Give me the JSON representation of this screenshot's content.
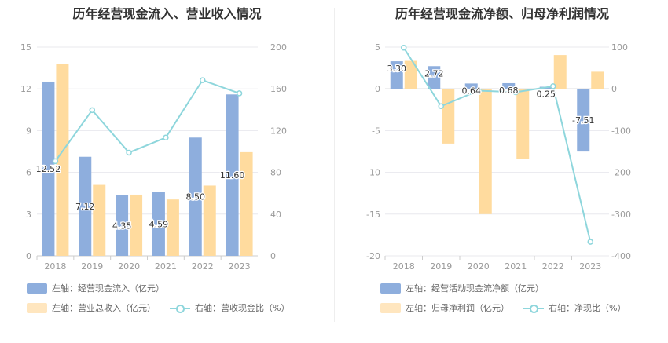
{
  "colors": {
    "bar_primary": "#8eaedd",
    "bar_secondary": "#ffdb9e",
    "line": "#8ed6dc",
    "axis_text": "#999999",
    "grid": "#e8e8ee"
  },
  "chart_data": [
    {
      "type": "bar",
      "title": "历年经营现金流入、营业收入情况",
      "categories": [
        "2018",
        "2019",
        "2020",
        "2021",
        "2022",
        "2023"
      ],
      "left_axis": {
        "ylim": [
          0,
          15
        ],
        "ticks": [
          "0",
          "3",
          "6",
          "9",
          "12",
          "15"
        ]
      },
      "right_axis": {
        "ylim": [
          0,
          200
        ],
        "ticks": [
          "0",
          "40",
          "80",
          "120",
          "160",
          "200"
        ]
      },
      "series": [
        {
          "name": "左轴：经营现金流入（亿元）",
          "type": "bar",
          "axis": "left",
          "values": [
            12.52,
            7.12,
            4.35,
            4.59,
            8.5,
            11.6
          ],
          "labels": [
            "12.52",
            "7.12",
            "4.35",
            "4.59",
            "8.50",
            "11.60"
          ]
        },
        {
          "name": "左轴：营业总收入（亿元）",
          "type": "bar",
          "axis": "left",
          "values": [
            13.8,
            5.1,
            4.4,
            4.05,
            5.05,
            7.45
          ]
        },
        {
          "name": "右轴：营收现金比（%）",
          "type": "line",
          "axis": "right",
          "values": [
            90.7,
            139.6,
            98.9,
            113.3,
            168.3,
            155.7
          ]
        }
      ]
    },
    {
      "type": "bar",
      "title": "历年经营现金流净额、归母净利润情况",
      "categories": [
        "2018",
        "2019",
        "2020",
        "2021",
        "2022",
        "2023"
      ],
      "left_axis": {
        "ylim": [
          -20,
          5
        ],
        "ticks": [
          "-20",
          "-15",
          "-10",
          "-5",
          "0",
          "5"
        ]
      },
      "right_axis": {
        "ylim": [
          -400,
          100
        ],
        "ticks": [
          "-400",
          "-300",
          "-200",
          "-100",
          "0",
          "100"
        ]
      },
      "series": [
        {
          "name": "左轴：经营活动现金流净额（亿元）",
          "type": "bar",
          "axis": "left",
          "values": [
            3.3,
            2.72,
            0.64,
            0.68,
            0.25,
            -7.51
          ],
          "labels": [
            "3.30",
            "2.72",
            "0.64",
            "0.68",
            "0.25",
            "-7.51"
          ]
        },
        {
          "name": "左轴：归母净利润（亿元）",
          "type": "bar",
          "axis": "left",
          "values": [
            3.35,
            -6.55,
            -15.0,
            -8.4,
            4.05,
            2.05
          ]
        },
        {
          "name": "右轴：净现比（%）",
          "type": "line",
          "axis": "right",
          "values": [
            98.5,
            -41.5,
            -4.3,
            -8.1,
            6.2,
            -366.3
          ]
        }
      ]
    }
  ]
}
